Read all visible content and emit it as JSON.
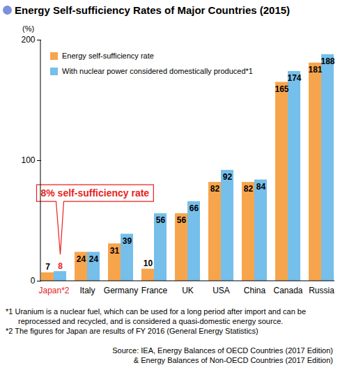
{
  "chart_data": {
    "type": "bar",
    "title": "Energy Self-sufficiency Rates of Major Countries (2015)",
    "y_label": "(%)",
    "categories": [
      "Japan*2",
      "Italy",
      "Germany",
      "France",
      "UK",
      "USA",
      "China",
      "Canada",
      "Russia"
    ],
    "series": [
      {
        "name": "Energy self-sufficiency rate",
        "color": "#f7a54d",
        "values": [
          7,
          24,
          31,
          10,
          56,
          82,
          82,
          165,
          181
        ]
      },
      {
        "name": "With nuclear power considered domestically produced*1",
        "color": "#75bfea",
        "values": [
          8,
          24,
          39,
          56,
          66,
          92,
          84,
          174,
          188
        ]
      }
    ],
    "ylim": [
      0,
      200
    ],
    "yticks": [
      0,
      100,
      200
    ],
    "grid": false,
    "legend": "top-left",
    "data_labels": true,
    "annotations": [
      {
        "text": "8% self-sufficiency rate",
        "category": "Japan*2",
        "series": "With nuclear power considered domestically produced*1",
        "color": "#e8231d"
      }
    ],
    "notes": [
      "*1 Uranium is a nuclear fuel, which can be used for a long period after import and can be reprocessed and recycled, and is considered a quasi-domestic energy source.",
      "*2 The figures for Japan are results of FY 2016 (General Energy Statistics)"
    ],
    "source": [
      "Source: IEA, Energy Balances of OECD Countries (2017 Edition)",
      "& Energy Balances of Non-OECD Countries (2017 Edition)"
    ]
  }
}
